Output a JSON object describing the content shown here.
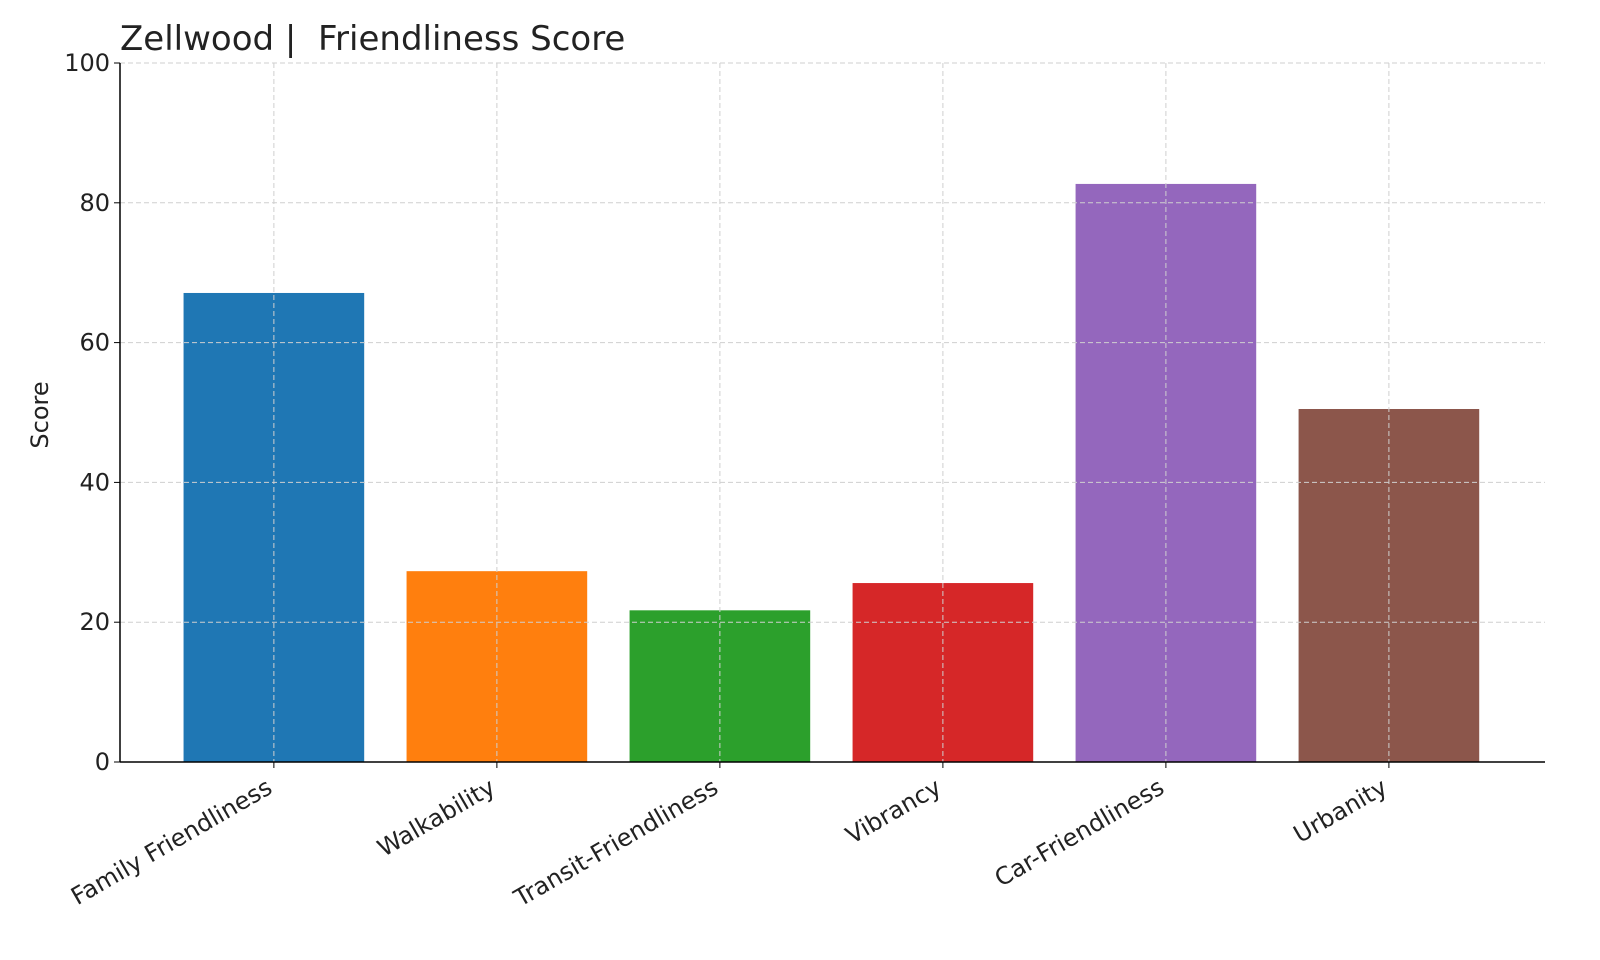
{
  "chart_data": {
    "type": "bar",
    "title": "Zellwood |  Friendliness Score",
    "ylabel": "Score",
    "categories": [
      "Family Friendliness",
      "Walkability",
      "Transit-Friendliness",
      "Vibrancy",
      "Car-Friendliness",
      "Urbanity"
    ],
    "values": [
      67.1,
      27.3,
      21.7,
      25.6,
      82.7,
      50.5
    ],
    "colors": [
      "#1f77b4",
      "#ff7f0e",
      "#2ca02c",
      "#d62728",
      "#9467bd",
      "#8c564b"
    ],
    "ylim": [
      0,
      100
    ],
    "yticks": [
      0,
      20,
      40,
      60,
      80,
      100
    ],
    "grid": true
  }
}
